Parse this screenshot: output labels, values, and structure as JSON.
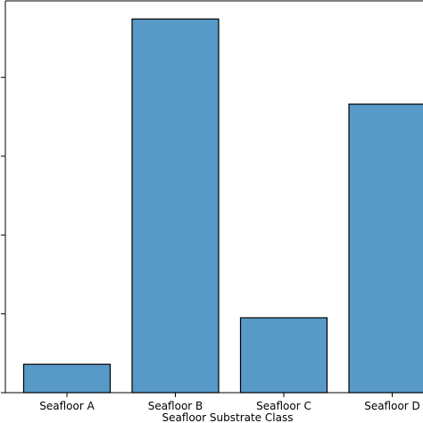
{
  "chart_data": {
    "type": "bar",
    "title": "",
    "xlabel": "Seafloor Substrate Class",
    "ylabel": "",
    "categories": [
      "Seafloor A",
      "Seafloor B",
      "Seafloor C",
      "Seafloor D"
    ],
    "values": [
      0.36,
      4.74,
      0.95,
      3.66
    ],
    "ylim": [
      0,
      4.97
    ],
    "yticks": [
      0,
      1,
      2,
      3,
      4
    ],
    "grid": false,
    "legend": "none",
    "bar_color": "#5799c7",
    "edge_color": "#000000"
  }
}
